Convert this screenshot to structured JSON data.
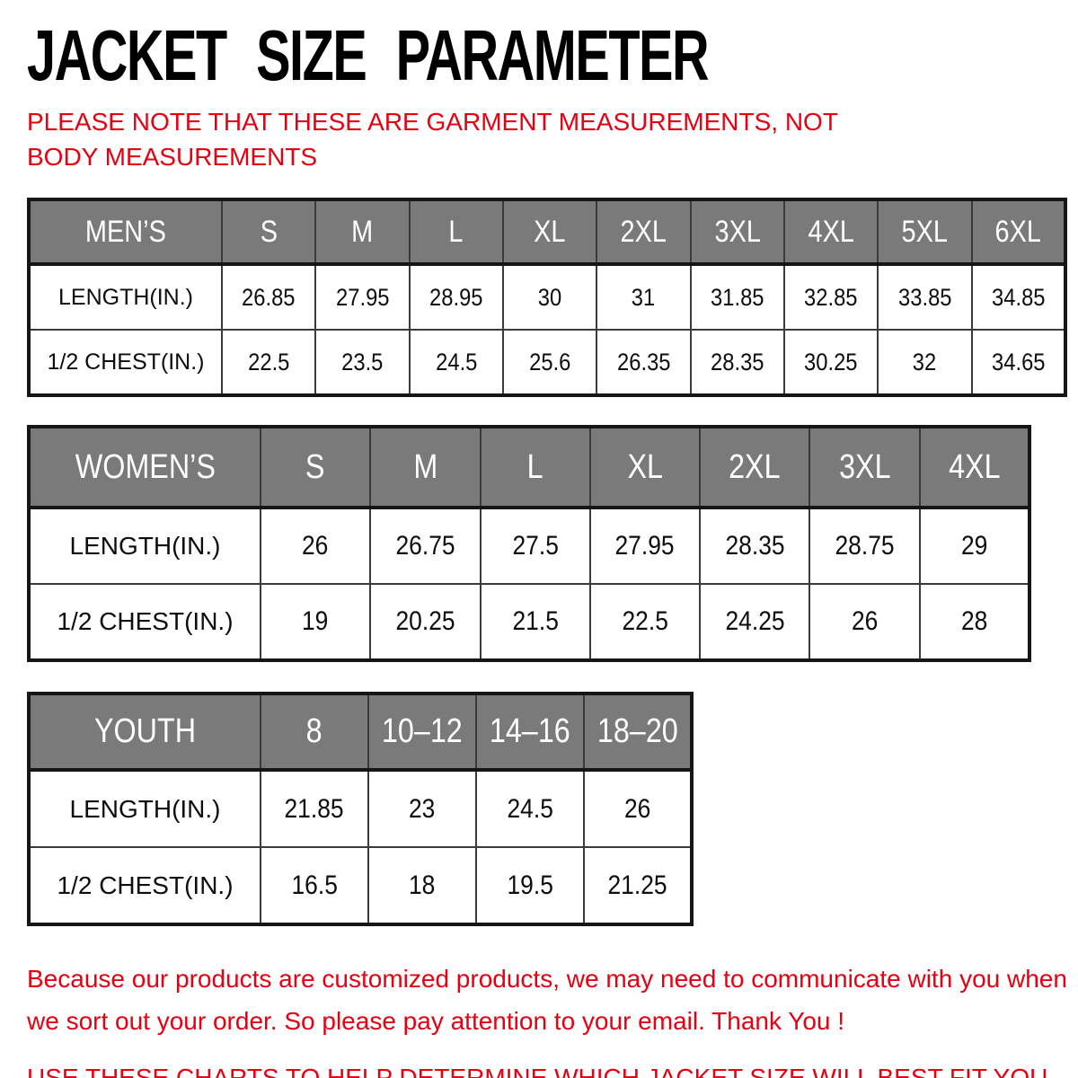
{
  "title": "JACKET SIZE PARAMETER",
  "note": "PLEASE NOTE THAT THESE ARE GARMENT MEASUREMENTS, NOT BODY MEASUREMENTS",
  "colors": {
    "header_bg": "#7a7a7a",
    "header_text": "#ffffff",
    "accent_red": "#e60012",
    "border_dark": "#161616",
    "border_inner": "#3a3a3a"
  },
  "tables": [
    {
      "name": "MEN’S",
      "sizes": [
        "S",
        "M",
        "L",
        "XL",
        "2XL",
        "3XL",
        "4XL",
        "5XL",
        "6XL"
      ],
      "rows": [
        {
          "label": "LENGTH(IN.)",
          "values": [
            "26.85",
            "27.95",
            "28.95",
            "30",
            "31",
            "31.85",
            "32.85",
            "33.85",
            "34.85"
          ]
        },
        {
          "label": "1/2 CHEST(IN.)",
          "values": [
            "22.5",
            "23.5",
            "24.5",
            "25.6",
            "26.35",
            "28.35",
            "30.25",
            "32",
            "34.65"
          ]
        }
      ]
    },
    {
      "name": "WOMEN’S",
      "sizes": [
        "S",
        "M",
        "L",
        "XL",
        "2XL",
        "3XL",
        "4XL"
      ],
      "rows": [
        {
          "label": "LENGTH(IN.)",
          "values": [
            "26",
            "26.75",
            "27.5",
            "27.95",
            "28.35",
            "28.75",
            "29"
          ]
        },
        {
          "label": "1/2 CHEST(IN.)",
          "values": [
            "19",
            "20.25",
            "21.5",
            "22.5",
            "24.25",
            "26",
            "28"
          ]
        }
      ]
    },
    {
      "name": "YOUTH",
      "sizes": [
        "8",
        "10–12",
        "14–16",
        "18–20"
      ],
      "rows": [
        {
          "label": "LENGTH(IN.)",
          "values": [
            "21.85",
            "23",
            "24.5",
            "26"
          ]
        },
        {
          "label": "1/2 CHEST(IN.)",
          "values": [
            "16.5",
            "18",
            "19.5",
            "21.25"
          ]
        }
      ]
    }
  ],
  "footer": {
    "customization_note": "Because our products are customized products, we may need to communicate with you when we sort out your order. So please pay attention to your email. Thank You !",
    "usage_note": "USE THESE CHARTS TO HELP DETERMINE WHICH JACKET SIZE WILL BEST FIT YOU."
  }
}
